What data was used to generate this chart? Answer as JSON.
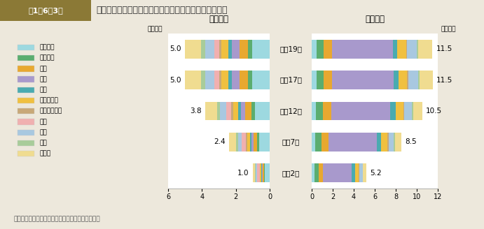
{
  "title": "専攻分野別にみた学生数（大学院（修士課程））の推移",
  "header_label": "第1－6－3図",
  "years": [
    "平成2年",
    "平成7年",
    "平成12年",
    "平成17年",
    "平成19年"
  ],
  "female_totals": [
    1.0,
    2.4,
    3.8,
    5.0,
    5.0
  ],
  "male_totals": [
    5.2,
    8.5,
    10.5,
    11.5,
    11.5
  ],
  "categories": [
    "人文科学",
    "社会科学",
    "理学",
    "工学",
    "農学",
    "医学・歯学",
    "その他の保健",
    "家政",
    "教育",
    "芸術",
    "その他"
  ],
  "colors": [
    "#9DD9E0",
    "#5BAD6F",
    "#E8A830",
    "#A899CC",
    "#4AABB0",
    "#F0C040",
    "#C8A878",
    "#F0B0B0",
    "#A8C8E0",
    "#A8CC9A",
    "#F0DC90"
  ],
  "female_fractions": [
    [
      0.3,
      0.05,
      0.08,
      0.03,
      0.04,
      0.06,
      0.02,
      0.15,
      0.09,
      0.06,
      0.12
    ],
    [
      0.26,
      0.05,
      0.09,
      0.05,
      0.04,
      0.07,
      0.03,
      0.1,
      0.09,
      0.05,
      0.17
    ],
    [
      0.23,
      0.05,
      0.1,
      0.07,
      0.04,
      0.08,
      0.03,
      0.07,
      0.1,
      0.05,
      0.18
    ],
    [
      0.21,
      0.05,
      0.1,
      0.09,
      0.04,
      0.08,
      0.03,
      0.05,
      0.11,
      0.05,
      0.19
    ],
    [
      0.21,
      0.05,
      0.1,
      0.09,
      0.04,
      0.08,
      0.03,
      0.05,
      0.11,
      0.05,
      0.19
    ]
  ],
  "male_fractions": [
    [
      0.05,
      0.08,
      0.08,
      0.52,
      0.06,
      0.07,
      0.01,
      0.0,
      0.06,
      0.01,
      0.06
    ],
    [
      0.04,
      0.07,
      0.08,
      0.54,
      0.05,
      0.07,
      0.01,
      0.0,
      0.06,
      0.01,
      0.07
    ],
    [
      0.04,
      0.06,
      0.08,
      0.53,
      0.05,
      0.07,
      0.01,
      0.0,
      0.07,
      0.01,
      0.08
    ],
    [
      0.04,
      0.06,
      0.07,
      0.51,
      0.04,
      0.07,
      0.01,
      0.0,
      0.08,
      0.01,
      0.11
    ],
    [
      0.04,
      0.06,
      0.07,
      0.5,
      0.04,
      0.07,
      0.01,
      0.0,
      0.08,
      0.01,
      0.12
    ]
  ],
  "female_xlabel": "〈女性〉",
  "male_xlabel": "〈男性〉",
  "unit_label": "（万人）",
  "female_xlim": 6,
  "male_xlim": 12,
  "note": "（備考）　文部科学者「学校基本調査」より作成。",
  "bg_color": "#EDE8DC",
  "header_bg_color": "#8B7936",
  "header_text_bg": "#FFFFFF",
  "bar_height": 0.6
}
